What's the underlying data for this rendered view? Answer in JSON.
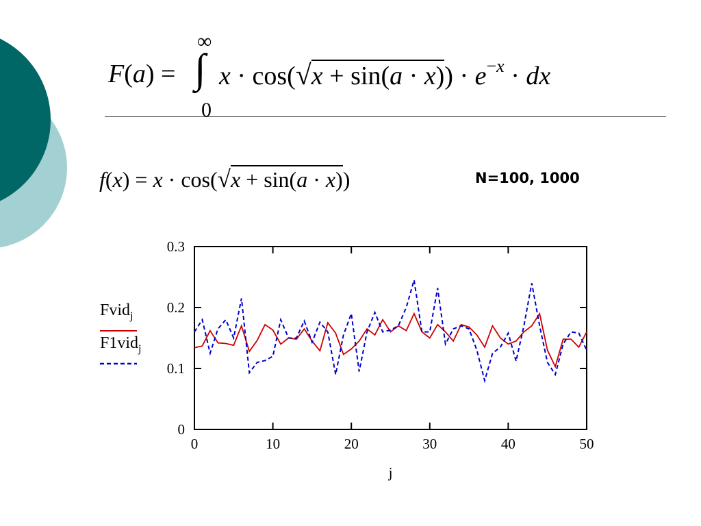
{
  "formula_main": {
    "lhs": "F(a) =",
    "upper_limit": "∞",
    "lower_limit": "0",
    "integrand": "x · cos(√(x + sin(a · x))) · e^(−x) · dx"
  },
  "formula_sub": {
    "text": "f(x) = x · cos(√(x + sin(a · x)))"
  },
  "note": "N=100, 1000",
  "colors": {
    "teal_dark": "#006666",
    "teal_light": "#a3d0d3",
    "series_solid": "#cc0000",
    "series_dashed": "#0000cc"
  },
  "chart_data": {
    "type": "line",
    "xlabel": "j",
    "ylabel": "",
    "xlim": [
      0,
      50
    ],
    "ylim": [
      0,
      0.3
    ],
    "xticks": [
      "0",
      "10",
      "20",
      "30",
      "40",
      "50"
    ],
    "yticks": [
      "0",
      "0.1",
      "0.2",
      "0.3"
    ],
    "grid": false,
    "legend_position": "left",
    "x": [
      0,
      1,
      2,
      3,
      4,
      5,
      6,
      7,
      8,
      9,
      10,
      11,
      12,
      13,
      14,
      15,
      16,
      17,
      18,
      19,
      20,
      21,
      22,
      23,
      24,
      25,
      26,
      27,
      28,
      29,
      30,
      31,
      32,
      33,
      34,
      35,
      36,
      37,
      38,
      39,
      40,
      41,
      42,
      43,
      44,
      45,
      46,
      47,
      48,
      49,
      50
    ],
    "series": [
      {
        "name": "Fvid",
        "subscript": "j",
        "style": "solid",
        "values": [
          0.134,
          0.137,
          0.162,
          0.142,
          0.141,
          0.138,
          0.17,
          0.128,
          0.146,
          0.172,
          0.163,
          0.14,
          0.15,
          0.148,
          0.165,
          0.145,
          0.129,
          0.175,
          0.158,
          0.123,
          0.132,
          0.145,
          0.165,
          0.155,
          0.18,
          0.16,
          0.17,
          0.162,
          0.19,
          0.16,
          0.15,
          0.172,
          0.16,
          0.145,
          0.172,
          0.168,
          0.155,
          0.135,
          0.17,
          0.15,
          0.14,
          0.145,
          0.16,
          0.17,
          0.19,
          0.13,
          0.103,
          0.148,
          0.148,
          0.135,
          0.16
        ]
      },
      {
        "name": "F1vid",
        "subscript": "j",
        "style": "dashed",
        "values": [
          0.16,
          0.18,
          0.125,
          0.165,
          0.18,
          0.15,
          0.215,
          0.093,
          0.11,
          0.113,
          0.12,
          0.18,
          0.15,
          0.15,
          0.178,
          0.143,
          0.176,
          0.16,
          0.09,
          0.155,
          0.19,
          0.095,
          0.16,
          0.192,
          0.16,
          0.163,
          0.17,
          0.2,
          0.245,
          0.16,
          0.16,
          0.232,
          0.14,
          0.165,
          0.17,
          0.165,
          0.13,
          0.08,
          0.125,
          0.135,
          0.158,
          0.112,
          0.17,
          0.24,
          0.17,
          0.11,
          0.09,
          0.14,
          0.16,
          0.158,
          0.13
        ]
      }
    ]
  }
}
